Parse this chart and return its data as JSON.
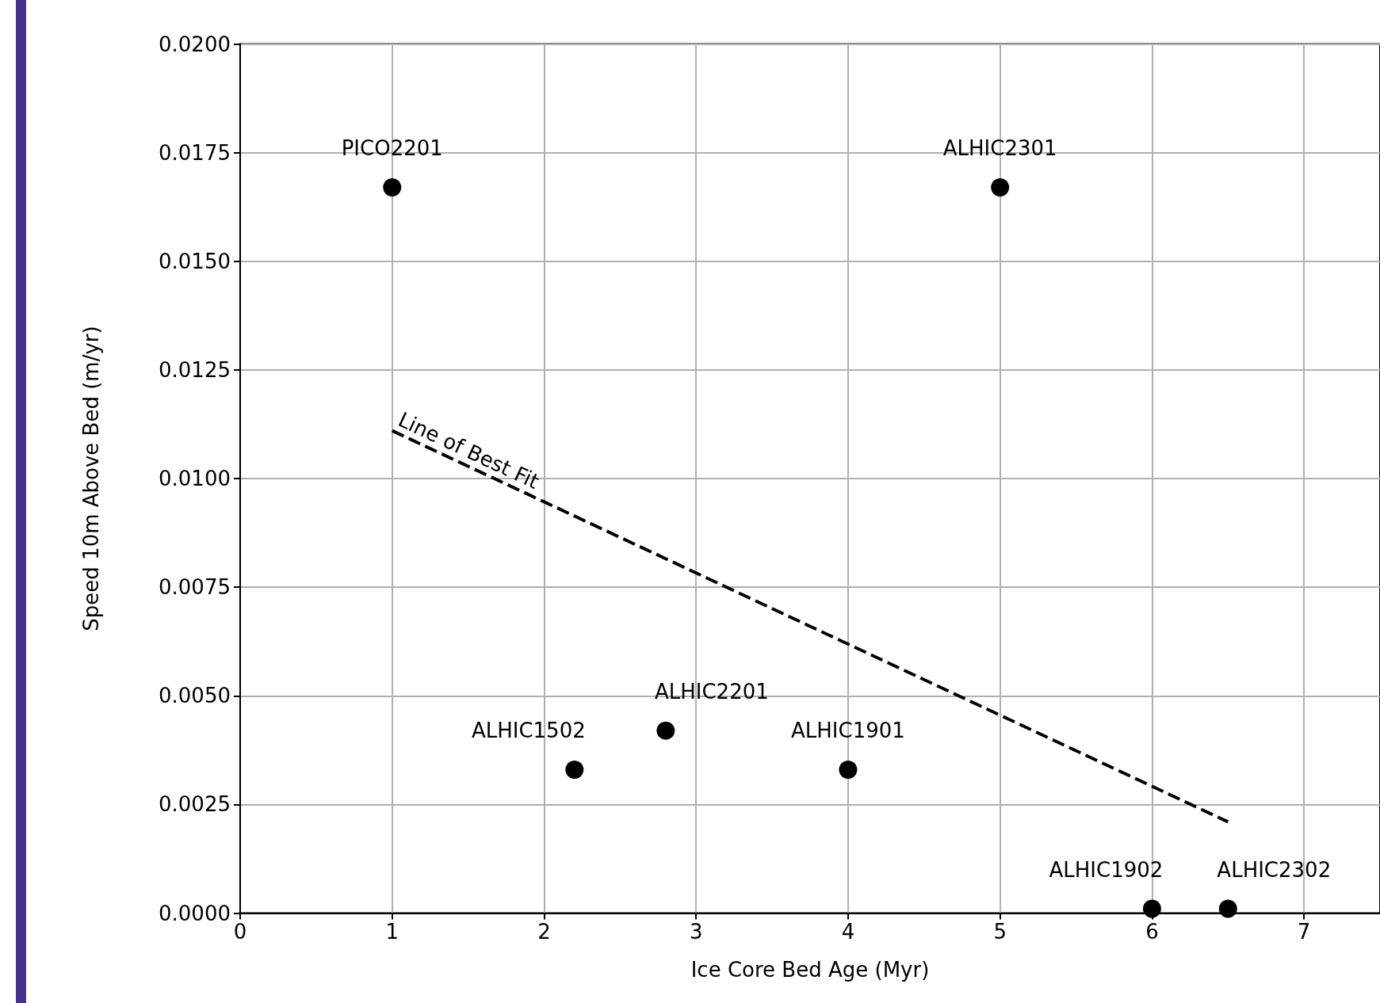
{
  "chart_data": {
    "type": "scatter",
    "xlabel": "Ice Core Bed Age (Myr)",
    "ylabel": "Speed 10m Above Bed (m/yr)",
    "xlim": [
      0,
      7.5
    ],
    "xticks": [
      0,
      1,
      2,
      3,
      4,
      5,
      6,
      7
    ],
    "ylim": [
      0,
      0.02
    ],
    "yticks": [
      {
        "value": 0,
        "label": "0.0000"
      },
      {
        "value": 0.0025,
        "label": "0.0025"
      },
      {
        "value": 0.005,
        "label": "0.0050"
      },
      {
        "value": 0.0075,
        "label": "0.0075"
      },
      {
        "value": 0.01,
        "label": "0.0100"
      },
      {
        "value": 0.0125,
        "label": "0.0125"
      },
      {
        "value": 0.015,
        "label": "0.0150"
      },
      {
        "value": 0.0175,
        "label": "0.0175"
      },
      {
        "value": 0.02,
        "label": "0.0200"
      }
    ],
    "grid": true,
    "marker": "circle",
    "series": [
      {
        "color": "#000000",
        "x": [
          1,
          5,
          2.2,
          2.8,
          4,
          6,
          6.5
        ],
        "values": [
          0.0167,
          0.0167,
          0.0033,
          0.0042,
          0.0033,
          0.0001,
          0.0001
        ],
        "value_labels": [
          "PICO2201",
          "ALHIC2301",
          "ALHIC1502",
          "ALHIC2201",
          "ALHIC1901",
          "ALHIC1902",
          "ALHIC2302"
        ]
      },
      {
        "type": "line",
        "name": "Line of Best Fit",
        "color": "#000000",
        "line_style": "dashed",
        "marker": "none",
        "x": [
          1,
          6.5
        ],
        "values": [
          0.0111,
          0.0021
        ]
      }
    ]
  }
}
